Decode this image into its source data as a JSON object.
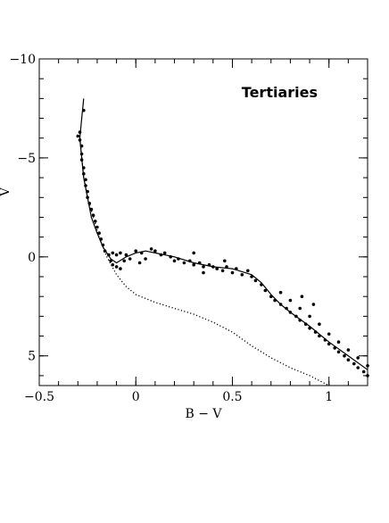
{
  "chart_data": {
    "type": "scatter",
    "title": "Tertiaries",
    "xlabel": "B − V",
    "ylabel": "V",
    "xlim": [
      -0.5,
      1.2
    ],
    "ylim": [
      6.5,
      -10
    ],
    "y_inverted": true,
    "x_ticks": [
      {
        "value": -0.5,
        "label": "−0.5"
      },
      {
        "value": 0,
        "label": "0"
      },
      {
        "value": 0.5,
        "label": "0.5"
      },
      {
        "value": 1,
        "label": "1"
      }
    ],
    "y_ticks": [
      {
        "value": -10,
        "label": "−10"
      },
      {
        "value": -5,
        "label": "−5"
      },
      {
        "value": 0,
        "label": "0"
      },
      {
        "value": 5,
        "label": "5"
      }
    ],
    "x_minor_step": 0.1,
    "y_minor_step": 1,
    "series": [
      {
        "style": "scatter",
        "color": "#000000",
        "points": [
          [
            -0.27,
            -7.4
          ],
          [
            -0.29,
            -6.3
          ],
          [
            -0.3,
            -6.1
          ],
          [
            -0.29,
            -5.9
          ],
          [
            -0.28,
            -5.6
          ],
          [
            -0.28,
            -5.2
          ],
          [
            -0.28,
            -4.9
          ],
          [
            -0.27,
            -4.5
          ],
          [
            -0.27,
            -4.2
          ],
          [
            -0.26,
            -3.9
          ],
          [
            -0.26,
            -3.6
          ],
          [
            -0.25,
            -3.3
          ],
          [
            -0.25,
            -3.0
          ],
          [
            -0.24,
            -2.7
          ],
          [
            -0.23,
            -2.4
          ],
          [
            -0.22,
            -2.1
          ],
          [
            -0.21,
            -1.8
          ],
          [
            -0.2,
            -1.5
          ],
          [
            -0.19,
            -1.2
          ],
          [
            -0.18,
            -0.9
          ],
          [
            -0.17,
            -0.6
          ],
          [
            -0.16,
            -0.3
          ],
          [
            -0.14,
            -0.1
          ],
          [
            -0.13,
            0.2
          ],
          [
            -0.12,
            0.4
          ],
          [
            -0.1,
            0.5
          ],
          [
            -0.08,
            0.6
          ],
          [
            -0.12,
            -0.2
          ],
          [
            -0.1,
            -0.1
          ],
          [
            -0.08,
            -0.2
          ],
          [
            -0.06,
            0.2
          ],
          [
            -0.05,
            -0.1
          ],
          [
            -0.03,
            0.1
          ],
          [
            0.0,
            -0.3
          ],
          [
            0.03,
            -0.2
          ],
          [
            0.05,
            0.1
          ],
          [
            0.08,
            -0.4
          ],
          [
            0.1,
            -0.3
          ],
          [
            0.13,
            -0.1
          ],
          [
            0.15,
            -0.2
          ],
          [
            0.18,
            0.0
          ],
          [
            0.2,
            0.2
          ],
          [
            0.22,
            0.1
          ],
          [
            0.25,
            0.3
          ],
          [
            0.28,
            0.2
          ],
          [
            0.3,
            0.4
          ],
          [
            0.33,
            0.3
          ],
          [
            0.35,
            0.5
          ],
          [
            0.38,
            0.4
          ],
          [
            0.4,
            0.5
          ],
          [
            0.42,
            0.6
          ],
          [
            0.45,
            0.7
          ],
          [
            0.47,
            0.5
          ],
          [
            0.5,
            0.8
          ],
          [
            0.52,
            0.6
          ],
          [
            0.55,
            0.9
          ],
          [
            0.58,
            0.7
          ],
          [
            0.6,
            1.0
          ],
          [
            0.62,
            1.2
          ],
          [
            0.65,
            1.4
          ],
          [
            0.67,
            1.7
          ],
          [
            0.7,
            2.0
          ],
          [
            0.72,
            2.2
          ],
          [
            0.75,
            2.4
          ],
          [
            0.78,
            2.6
          ],
          [
            0.8,
            2.8
          ],
          [
            0.83,
            3.0
          ],
          [
            0.85,
            3.2
          ],
          [
            0.88,
            3.4
          ],
          [
            0.9,
            3.6
          ],
          [
            0.93,
            3.8
          ],
          [
            0.95,
            4.0
          ],
          [
            0.98,
            4.2
          ],
          [
            1.0,
            4.4
          ],
          [
            1.03,
            4.6
          ],
          [
            1.05,
            4.8
          ],
          [
            1.08,
            5.0
          ],
          [
            1.1,
            5.2
          ],
          [
            1.13,
            5.4
          ],
          [
            1.15,
            5.6
          ],
          [
            1.18,
            5.8
          ],
          [
            1.2,
            6.0
          ],
          [
            0.75,
            1.8
          ],
          [
            0.8,
            2.2
          ],
          [
            0.85,
            2.6
          ],
          [
            0.9,
            3.0
          ],
          [
            0.95,
            3.4
          ],
          [
            1.0,
            3.9
          ],
          [
            1.05,
            4.3
          ],
          [
            1.1,
            4.7
          ],
          [
            1.15,
            5.1
          ],
          [
            1.2,
            5.5
          ],
          [
            0.86,
            2.0
          ],
          [
            0.92,
            2.4
          ],
          [
            0.3,
            -0.2
          ],
          [
            0.35,
            0.8
          ],
          [
            0.02,
            0.3
          ],
          [
            0.46,
            0.2
          ]
        ]
      },
      {
        "style": "solid-line",
        "color": "#000000",
        "points": [
          [
            -0.27,
            -8.0
          ],
          [
            -0.28,
            -7.0
          ],
          [
            -0.29,
            -6.0
          ],
          [
            -0.28,
            -5.0
          ],
          [
            -0.27,
            -4.0
          ],
          [
            -0.25,
            -3.0
          ],
          [
            -0.23,
            -2.0
          ],
          [
            -0.2,
            -1.2
          ],
          [
            -0.17,
            -0.5
          ],
          [
            -0.13,
            0.1
          ],
          [
            -0.1,
            0.3
          ],
          [
            -0.05,
            0.0
          ],
          [
            0.0,
            -0.2
          ],
          [
            0.05,
            -0.3
          ],
          [
            0.1,
            -0.2
          ],
          [
            0.2,
            0.0
          ],
          [
            0.3,
            0.3
          ],
          [
            0.4,
            0.5
          ],
          [
            0.5,
            0.6
          ],
          [
            0.6,
            0.9
          ],
          [
            0.65,
            1.3
          ],
          [
            0.7,
            1.9
          ],
          [
            0.75,
            2.4
          ],
          [
            0.8,
            2.8
          ],
          [
            0.9,
            3.5
          ],
          [
            1.0,
            4.3
          ],
          [
            1.1,
            5.0
          ],
          [
            1.2,
            5.7
          ]
        ]
      },
      {
        "style": "dotted-line",
        "color": "#000000",
        "points": [
          [
            -0.29,
            -6.0
          ],
          [
            -0.28,
            -5.0
          ],
          [
            -0.27,
            -4.0
          ],
          [
            -0.25,
            -3.0
          ],
          [
            -0.22,
            -2.0
          ],
          [
            -0.19,
            -1.0
          ],
          [
            -0.15,
            0.0
          ],
          [
            -0.1,
            0.9
          ],
          [
            -0.05,
            1.5
          ],
          [
            0.0,
            1.9
          ],
          [
            0.1,
            2.3
          ],
          [
            0.2,
            2.6
          ],
          [
            0.3,
            2.9
          ],
          [
            0.4,
            3.3
          ],
          [
            0.5,
            3.8
          ],
          [
            0.6,
            4.5
          ],
          [
            0.7,
            5.1
          ],
          [
            0.8,
            5.6
          ],
          [
            0.9,
            6.0
          ],
          [
            1.0,
            6.5
          ]
        ]
      }
    ]
  }
}
